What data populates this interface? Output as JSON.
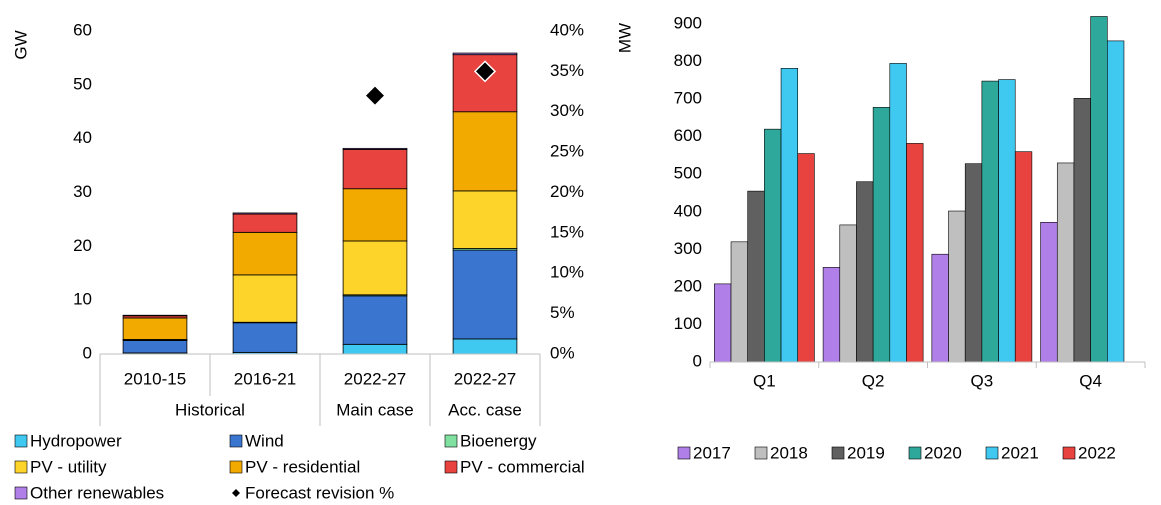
{
  "chart_data": [
    {
      "type": "bar",
      "stacked": true,
      "ylabel": "GW",
      "categories": [
        "2010-15",
        "2016-21",
        "2022-27",
        "2022-27"
      ],
      "groups": [
        "Historical",
        "Historical",
        "Main case",
        "Acc. case"
      ],
      "ylim": [
        0,
        60
      ],
      "yticks": [
        0,
        10,
        20,
        30,
        40,
        50,
        60
      ],
      "y2lim": [
        0,
        40
      ],
      "y2ticks": [
        {
          "value": 0,
          "label": "0%"
        },
        {
          "value": 5,
          "label": "5%"
        },
        {
          "value": 10,
          "label": "10%"
        },
        {
          "value": 15,
          "label": "15%"
        },
        {
          "value": 20,
          "label": "20%"
        },
        {
          "value": 25,
          "label": "25%"
        },
        {
          "value": 30,
          "label": "30%"
        },
        {
          "value": 35,
          "label": "35%"
        },
        {
          "value": 40,
          "label": "40%"
        }
      ],
      "series": [
        {
          "name": "Hydropower",
          "color": "#3fc8f0",
          "values": [
            0.2,
            0.3,
            1.8,
            2.8
          ]
        },
        {
          "name": "Wind",
          "color": "#3a75d0",
          "values": [
            2.3,
            5.5,
            9.0,
            16.5
          ]
        },
        {
          "name": "Bioenergy",
          "color": "#7fe0a0",
          "values": [
            0.1,
            0.1,
            0.2,
            0.3
          ]
        },
        {
          "name": "PV - utility",
          "color": "#fdd42a",
          "values": [
            0.1,
            8.8,
            10.0,
            10.7
          ]
        },
        {
          "name": "PV - residential",
          "color": "#f2a900",
          "values": [
            4.0,
            7.9,
            9.7,
            14.7
          ]
        },
        {
          "name": "PV - commercial",
          "color": "#e8433f",
          "values": [
            0.4,
            3.4,
            7.3,
            10.6
          ]
        },
        {
          "name": "Other renewables",
          "color": "#b07fe8",
          "values": [
            0.1,
            0.2,
            0.2,
            0.3
          ]
        },
        {
          "name": "Forecast revision %",
          "color": "#000000",
          "type": "scatter",
          "axis": "y2",
          "values": [
            null,
            null,
            32,
            35
          ]
        }
      ]
    },
    {
      "type": "bar",
      "ylabel": "MW",
      "categories": [
        "Q1",
        "Q2",
        "Q3",
        "Q4"
      ],
      "ylim": [
        0,
        900
      ],
      "yticks": [
        0,
        100,
        200,
        300,
        400,
        500,
        600,
        700,
        800,
        900
      ],
      "series": [
        {
          "name": "2017",
          "color": "#b07fe8",
          "values": [
            208,
            252,
            287,
            372
          ]
        },
        {
          "name": "2018",
          "color": "#bfbfbf",
          "values": [
            320,
            365,
            402,
            530
          ]
        },
        {
          "name": "2019",
          "color": "#606060",
          "values": [
            455,
            480,
            528,
            702
          ]
        },
        {
          "name": "2020",
          "color": "#2ea89a",
          "values": [
            620,
            678,
            748,
            920
          ]
        },
        {
          "name": "2021",
          "color": "#3fc8f0",
          "values": [
            782,
            795,
            752,
            855
          ]
        },
        {
          "name": "2022",
          "color": "#e8433f",
          "values": [
            555,
            582,
            560,
            null
          ]
        }
      ]
    }
  ]
}
